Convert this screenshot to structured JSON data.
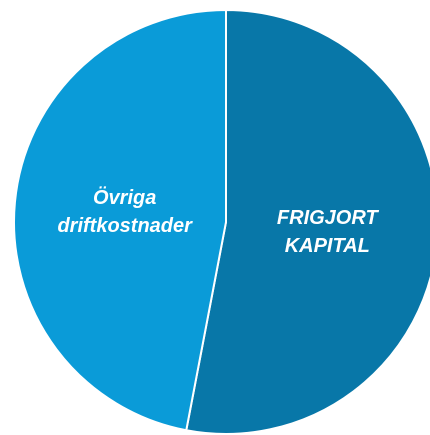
{
  "chart_data": {
    "type": "pie",
    "categories": [
      "FRIGJORT KAPITAL",
      "Övriga driftkostnader"
    ],
    "values": [
      53,
      47
    ],
    "colors": [
      "#0877a8",
      "#0a9bd8"
    ]
  }
}
